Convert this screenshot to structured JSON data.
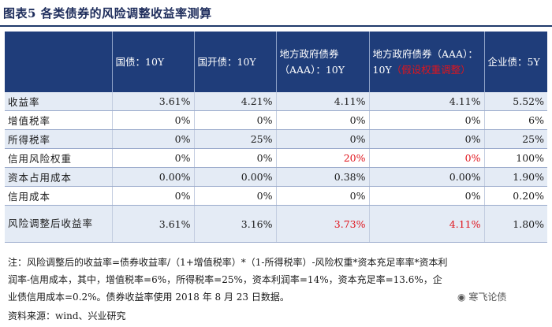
{
  "title": "图表5  各类债券的风险调整收益率测算",
  "headers": [
    "",
    "国债：10Y",
    "国开债：10Y",
    "地方政府债券（AAA）：10Y",
    "地方政府债券（AAA）：10Y",
    "（假设权重调整）",
    "企业债：5Y"
  ],
  "rows": [
    {
      "label": "收益率",
      "values": [
        "3.61%",
        "4.21%",
        "4.11%",
        "4.11%",
        "5.52%"
      ]
    },
    {
      "label": "增值税率",
      "values": [
        "0%",
        "0%",
        "0%",
        "0%",
        "6%"
      ]
    },
    {
      "label": "所得税率",
      "values": [
        "0%",
        "25%",
        "0%",
        "0%",
        "25%"
      ]
    },
    {
      "label": "信用风险权重",
      "values": [
        "0%",
        "0%",
        "20%",
        "0%",
        "100%"
      ]
    },
    {
      "label": "资本占用成本",
      "values": [
        "0.00%",
        "0.00%",
        "0.38%",
        "0.00%",
        "1.90%"
      ]
    },
    {
      "label": "信用成本",
      "values": [
        "0%",
        "0%",
        "0%",
        "0%",
        "0.20%"
      ]
    },
    {
      "label": "风险调整后收益率",
      "values": [
        "3.61%",
        "3.16%",
        "3.73%",
        "4.11%",
        "1.80%"
      ]
    }
  ],
  "note": "注：风险调整后的收益率=债券收益率/（1+增值税率）*（1-所得税率）-风险权重*资本充足率率*资本利润率-信用成本，其中，增值税率=6%，所得税率=25%，资本利润率=14%，资本充足率=13.6%，企业债信用成本=0.2%。债券收益率使用 2018 年 8 月 23 日数据。",
  "source": "资料来源：wind、兴业研究",
  "watermark": "寒飞论债",
  "colors": {
    "header_bg": "#1f3d7a",
    "alt_row_bg": "#e4ebf5",
    "highlight": "#e0141c"
  }
}
